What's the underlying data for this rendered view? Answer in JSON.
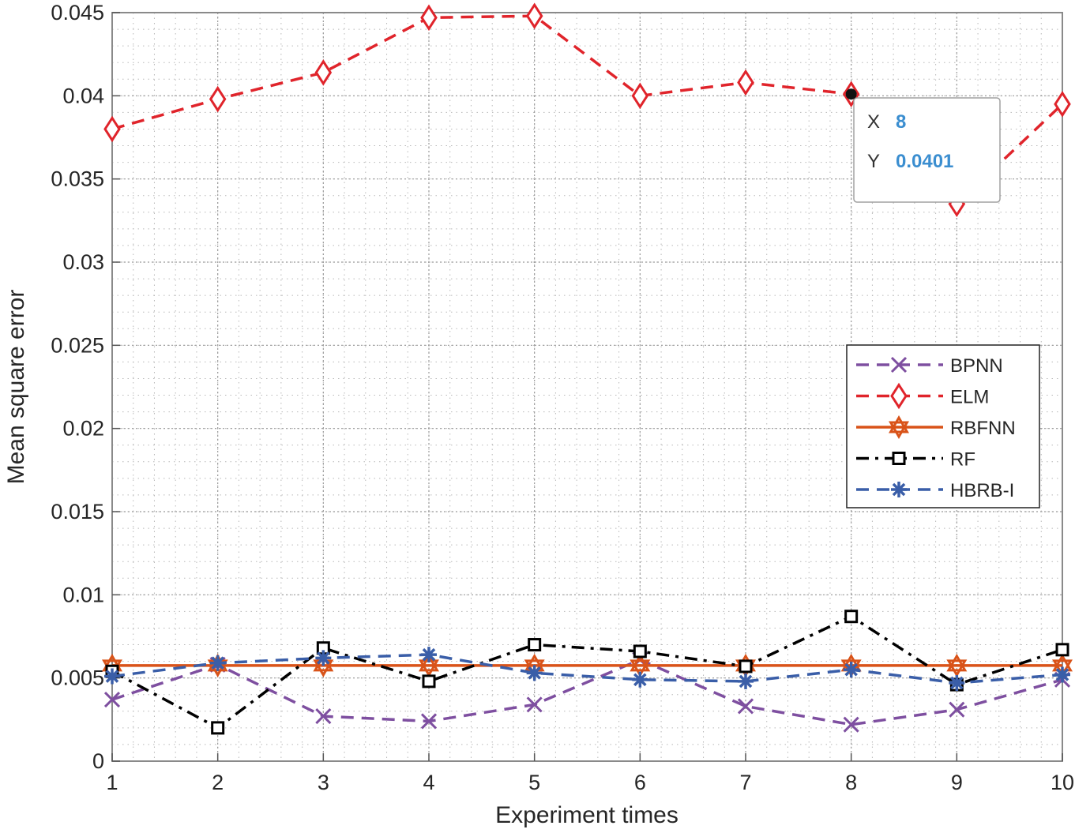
{
  "chart_data": {
    "type": "line",
    "title": "",
    "xlabel": "Experiment times",
    "ylabel": "Mean square error",
    "xlim": [
      1,
      10
    ],
    "ylim": [
      0,
      0.045
    ],
    "grid": "on (major and minor, dotted)",
    "legend_position": "right",
    "x": [
      1,
      2,
      3,
      4,
      5,
      6,
      7,
      8,
      9,
      10
    ],
    "xticks": [
      "1",
      "2",
      "3",
      "4",
      "5",
      "6",
      "7",
      "8",
      "9",
      "10"
    ],
    "yticks": [
      0,
      0.005,
      0.01,
      0.015,
      0.02,
      0.025,
      0.03,
      0.035,
      0.04,
      0.045
    ],
    "ytick_labels": [
      "0",
      "0.005",
      "0.01",
      "0.015",
      "0.02",
      "0.025",
      "0.03",
      "0.035",
      "0.04",
      "0.045"
    ],
    "series": [
      {
        "name": "BPNN",
        "color": "#7e4fa0",
        "style": "dashed",
        "marker": "x",
        "values": [
          0.0037,
          0.0058,
          0.0027,
          0.0024,
          0.0034,
          0.0061,
          0.0033,
          0.0022,
          0.0031,
          0.0049
        ]
      },
      {
        "name": "ELM",
        "color": "#e0242b",
        "style": "dashed",
        "marker": "diamond",
        "values": [
          0.038,
          0.0398,
          0.0414,
          0.0447,
          0.0448,
          0.04,
          0.0408,
          0.0401,
          0.0335,
          0.0395
        ]
      },
      {
        "name": "RBFNN",
        "color": "#d95319",
        "style": "solid",
        "marker": "hexagram",
        "values": [
          0.00575,
          0.00575,
          0.00575,
          0.00575,
          0.00575,
          0.00575,
          0.00575,
          0.00575,
          0.00575,
          0.00575
        ]
      },
      {
        "name": "RF",
        "color": "#000000",
        "style": "dashdot",
        "marker": "square",
        "values": [
          0.0054,
          0.002,
          0.0068,
          0.0048,
          0.007,
          0.0066,
          0.0057,
          0.0087,
          0.0046,
          0.0067
        ]
      },
      {
        "name": "HBRB-I",
        "color": "#3a5ea8",
        "style": "dashed",
        "marker": "asterisk",
        "values": [
          0.0051,
          0.0059,
          0.0062,
          0.0064,
          0.0053,
          0.0049,
          0.0048,
          0.0055,
          0.0047,
          0.0052
        ]
      }
    ],
    "datatip": {
      "x_label": "X",
      "x_value": "8",
      "y_label": "Y",
      "y_value": "0.0401"
    }
  }
}
